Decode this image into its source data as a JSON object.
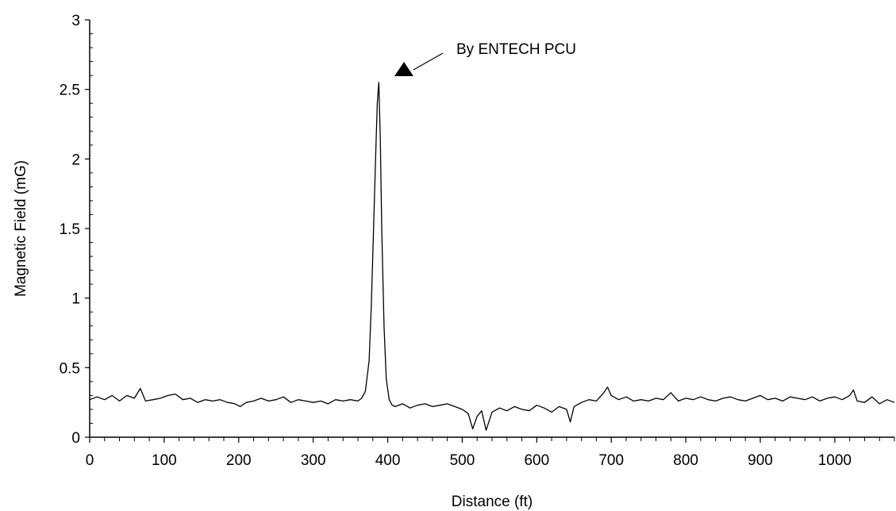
{
  "chart_data": {
    "type": "line",
    "title": "",
    "xlabel": "Distance (ft)",
    "ylabel": "Magnetic Field (mG)",
    "xlim": [
      0,
      1080
    ],
    "ylim": [
      0,
      3
    ],
    "x_ticks": [
      0,
      100,
      200,
      300,
      400,
      500,
      600,
      700,
      800,
      900,
      1000
    ],
    "x_tick_labels": [
      "0",
      "100",
      "200",
      "300",
      "400",
      "500",
      "600",
      "700",
      "800",
      "900",
      "1000"
    ],
    "y_ticks": [
      0,
      0.5,
      1,
      1.5,
      2,
      2.5,
      3
    ],
    "y_tick_labels": [
      "0",
      "0.5",
      "1",
      "1.5",
      "2",
      "2.5",
      "3"
    ],
    "grid": false,
    "annotation": {
      "text": "By ENTECH PCU",
      "marker": "triangle-up-icon",
      "x": 420,
      "y": 2.63
    },
    "series": [
      {
        "color": "#000000",
        "x": [
          0,
          10,
          20,
          30,
          40,
          50,
          60,
          68,
          75,
          85,
          95,
          105,
          115,
          125,
          135,
          145,
          155,
          165,
          175,
          185,
          195,
          202,
          210,
          220,
          230,
          240,
          250,
          260,
          270,
          280,
          290,
          300,
          310,
          320,
          330,
          340,
          350,
          360,
          365,
          370,
          375,
          378,
          381,
          384,
          386,
          388,
          390,
          392,
          395,
          398,
          402,
          406,
          410,
          420,
          430,
          440,
          450,
          460,
          470,
          480,
          490,
          500,
          508,
          514,
          520,
          526,
          532,
          540,
          550,
          560,
          570,
          580,
          590,
          600,
          610,
          620,
          630,
          640,
          645,
          650,
          660,
          670,
          680,
          690,
          695,
          700,
          710,
          720,
          730,
          740,
          750,
          760,
          770,
          780,
          790,
          800,
          810,
          820,
          830,
          840,
          850,
          860,
          870,
          880,
          890,
          900,
          910,
          920,
          930,
          940,
          950,
          960,
          970,
          980,
          990,
          1000,
          1010,
          1020,
          1025,
          1030,
          1040,
          1050,
          1060,
          1070,
          1080
        ],
        "values": [
          0.27,
          0.29,
          0.27,
          0.3,
          0.26,
          0.3,
          0.28,
          0.35,
          0.26,
          0.27,
          0.28,
          0.3,
          0.31,
          0.27,
          0.28,
          0.25,
          0.27,
          0.26,
          0.27,
          0.25,
          0.24,
          0.22,
          0.25,
          0.26,
          0.28,
          0.26,
          0.27,
          0.29,
          0.25,
          0.27,
          0.26,
          0.25,
          0.26,
          0.24,
          0.27,
          0.26,
          0.27,
          0.26,
          0.28,
          0.33,
          0.55,
          0.95,
          1.5,
          2.05,
          2.4,
          2.55,
          2.15,
          1.5,
          0.8,
          0.42,
          0.27,
          0.23,
          0.22,
          0.24,
          0.21,
          0.23,
          0.24,
          0.22,
          0.23,
          0.24,
          0.22,
          0.2,
          0.17,
          0.06,
          0.15,
          0.19,
          0.05,
          0.18,
          0.21,
          0.19,
          0.22,
          0.2,
          0.19,
          0.23,
          0.21,
          0.18,
          0.22,
          0.2,
          0.11,
          0.22,
          0.25,
          0.27,
          0.26,
          0.32,
          0.36,
          0.3,
          0.27,
          0.29,
          0.26,
          0.27,
          0.26,
          0.28,
          0.27,
          0.32,
          0.26,
          0.28,
          0.27,
          0.29,
          0.27,
          0.26,
          0.28,
          0.29,
          0.27,
          0.26,
          0.28,
          0.3,
          0.27,
          0.28,
          0.26,
          0.29,
          0.28,
          0.27,
          0.29,
          0.26,
          0.28,
          0.29,
          0.27,
          0.3,
          0.34,
          0.26,
          0.25,
          0.29,
          0.24,
          0.27,
          0.25
        ]
      }
    ]
  }
}
